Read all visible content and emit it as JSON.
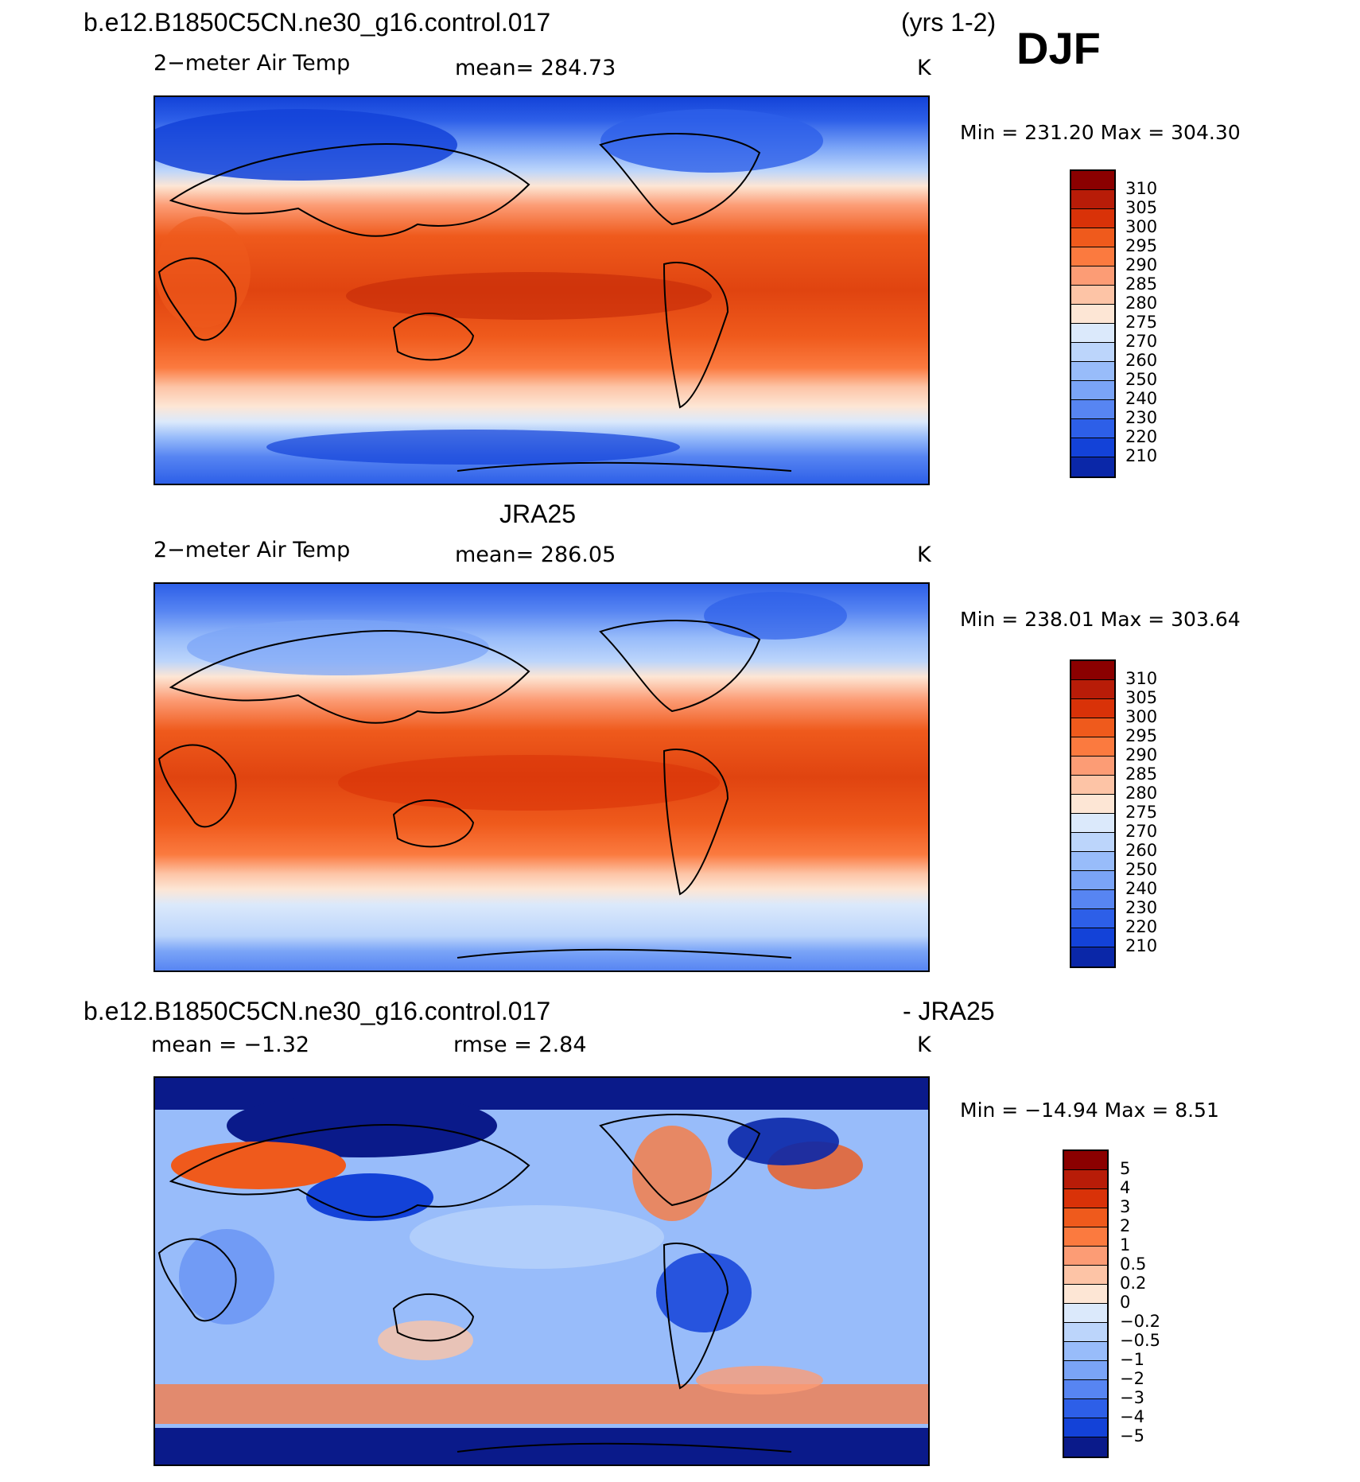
{
  "header": {
    "case_name": "b.e12.B1850C5CN.ne30_g16.control.017",
    "years": "(yrs 1-2)",
    "season": "DJF"
  },
  "panels": [
    {
      "id": "model",
      "title": "",
      "var_label": "2−meter Air Temp",
      "stat_label": "mean=  284.73",
      "units": "K",
      "minmax": "Min  =  231.20  Max  =  304.30",
      "colorbar": {
        "labels": [
          "310",
          "305",
          "300",
          "295",
          "290",
          "285",
          "280",
          "275",
          "270",
          "260",
          "250",
          "240",
          "230",
          "220",
          "210"
        ],
        "colors": [
          "#8b0000",
          "#b81c08",
          "#d93208",
          "#ef5a1c",
          "#fb7a3f",
          "#fc9c75",
          "#fdc4a6",
          "#fde6d5",
          "#dbe9fb",
          "#bcd5fb",
          "#98bcfa",
          "#7aa4f7",
          "#5785f2",
          "#2d5fe8",
          "#1342d8",
          "#0a27a8"
        ]
      }
    },
    {
      "id": "obs",
      "title": "JRA25",
      "var_label": "2−meter Air Temp",
      "stat_label": "mean=  286.05",
      "units": "K",
      "minmax": "Min  =  238.01  Max  =  303.64",
      "colorbar": {
        "labels": [
          "310",
          "305",
          "300",
          "295",
          "290",
          "285",
          "280",
          "275",
          "270",
          "260",
          "250",
          "240",
          "230",
          "220",
          "210"
        ],
        "colors": [
          "#8b0000",
          "#b81c08",
          "#d93208",
          "#ef5a1c",
          "#fb7a3f",
          "#fc9c75",
          "#fdc4a6",
          "#fde6d5",
          "#dbe9fb",
          "#bcd5fb",
          "#98bcfa",
          "#7aa4f7",
          "#5785f2",
          "#2d5fe8",
          "#1342d8",
          "#0a27a8"
        ]
      }
    },
    {
      "id": "diff",
      "title_left": "b.e12.B1850C5CN.ne30_g16.control.017",
      "title_right": "- JRA25",
      "var_label": "mean =    −1.32",
      "stat_label": "rmse =     2.84",
      "units": "K",
      "minmax": "Min  =  −14.94  Max  =     8.51",
      "colorbar": {
        "labels": [
          "5",
          "4",
          "3",
          "2",
          "1",
          "0.5",
          "0.2",
          "0",
          "−0.2",
          "−0.5",
          "−1",
          "−2",
          "−3",
          "−4",
          "−5"
        ],
        "colors": [
          "#8b0000",
          "#b81c08",
          "#d93208",
          "#ef5a1c",
          "#fb7a3f",
          "#fc9c75",
          "#fdc4a6",
          "#fde6d5",
          "#dbe9fb",
          "#bcd5fb",
          "#98bcfa",
          "#7aa4f7",
          "#5785f2",
          "#2d5fe8",
          "#1342d8",
          "#0a1a8a"
        ]
      }
    }
  ]
}
